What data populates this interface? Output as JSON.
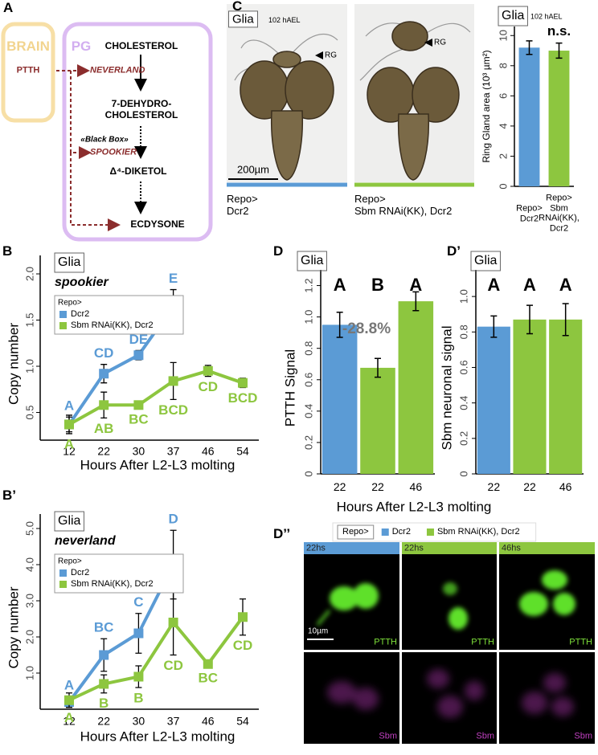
{
  "panel_labels": {
    "a": "A",
    "b": "B",
    "b2": "B’",
    "c": "C",
    "d": "D",
    "d2": "D’",
    "d3": "D’’"
  },
  "pathway": {
    "brain": "BRAIN",
    "ptth": "PTTH",
    "pg": "PG",
    "neverland": "NEVERLAND",
    "cholesterol": "CHOLESTEROL",
    "dehydro": "7-DEHYDRO-\nCHOLESTEROL",
    "black_box": "«Black Box»",
    "spookier": "SPOOKIER",
    "diketol": "Δ⁴-DIKETOL",
    "ecdysone": "ECDYSONE"
  },
  "micrographs": {
    "label": "Glia",
    "stage": "102 hAEL",
    "marker": "RG",
    "scale_bar": "200µm",
    "captions": [
      "Repo>\nDcr2",
      "Repo>\nSbm RNAi(KK), Dcr2"
    ]
  },
  "legend": {
    "title": "Repo>",
    "items": [
      {
        "name": "Dcr2",
        "color": "#5b9bd5"
      },
      {
        "name": "Sbm RNAi(KK), Dcr2",
        "color": "#8dc63f"
      }
    ]
  },
  "confocal": {
    "timepoints": [
      "22hs",
      "22hs",
      "46hs"
    ],
    "scale_bar": "10µm",
    "channels": [
      "PTTH",
      "Sbm"
    ]
  },
  "chart_data": [
    {
      "type": "bar",
      "title": "Glia",
      "subtitle": "102 hAEL",
      "ylabel": "Ring Gland area (10³ µm²)",
      "categories": [
        "Repo>\nDcr2",
        "Repo>\nSbm RNAi(KK), Dcr2"
      ],
      "values": [
        9.2,
        9.0
      ],
      "errors": [
        0.45,
        0.5
      ],
      "colors": [
        "#5b9bd5",
        "#8dc63f"
      ],
      "annotation": "n.s.",
      "ylim": [
        0,
        10.6
      ],
      "yticks": [
        0,
        2,
        4,
        6,
        8,
        10
      ]
    },
    {
      "type": "line",
      "title": "Glia",
      "subtitle": "spookier",
      "xlabel": "Hours After L2-L3 molting",
      "ylabel": "Copy number",
      "legend_title": "Repo>",
      "categories": [
        "12",
        "22",
        "30",
        "37",
        "46",
        "54"
      ],
      "series": [
        {
          "name": "Dcr2",
          "color": "#5b9bd5",
          "values": [
            0.37,
            0.92,
            1.12,
            1.65,
            null,
            null
          ],
          "errors": [
            0.08,
            0.1,
            0.05,
            0.18,
            null,
            null
          ],
          "letters": [
            "A",
            "CD",
            "DE",
            "E",
            null,
            null
          ]
        },
        {
          "name": "Sbm RNAi(KK), Dcr2",
          "color": "#8dc63f",
          "values": [
            0.37,
            0.58,
            0.58,
            0.84,
            0.95,
            0.82
          ],
          "errors": [
            0.1,
            0.14,
            0.04,
            0.2,
            0.06,
            0.05
          ],
          "letters": [
            "A",
            "AB",
            "BC",
            "BCD",
            "CD",
            "BCD"
          ]
        }
      ],
      "ylim": [
        0.2,
        2.2
      ],
      "yticks": [
        0.5,
        {
          "value": 1,
          "label": "1.0"
        },
        1.5,
        {
          "value": 2,
          "label": "2.0"
        }
      ]
    },
    {
      "type": "line",
      "title": "Glia",
      "subtitle": "neverland",
      "xlabel": "Hours After L2-L3 molting",
      "ylabel": "Copy number",
      "legend_title": "Repo>",
      "categories": [
        "12",
        "22",
        "30",
        "37",
        "46",
        "54"
      ],
      "series": [
        {
          "name": "Dcr2",
          "color": "#5b9bd5",
          "values": [
            0.2,
            1.5,
            2.1,
            4.0,
            null,
            null
          ],
          "errors": [
            0.15,
            0.45,
            0.55,
            0.95,
            null,
            null
          ],
          "letters": [
            "A",
            "BC",
            "C",
            "D",
            null,
            null
          ]
        },
        {
          "name": "Sbm RNAi(KK), Dcr2",
          "color": "#8dc63f",
          "values": [
            0.25,
            0.7,
            0.9,
            2.4,
            1.25,
            2.55
          ],
          "errors": [
            0.2,
            0.25,
            0.3,
            0.9,
            0.1,
            0.5
          ],
          "letters": [
            "A",
            "B",
            "B",
            "CD",
            "BC",
            "CD"
          ]
        }
      ],
      "ylim": [
        0,
        5.4
      ],
      "yticks": [
        {
          "value": 1,
          "label": "1.0"
        },
        {
          "value": 2,
          "label": "2.0"
        },
        {
          "value": 3,
          "label": "3.0"
        },
        {
          "value": 4,
          "label": "4.0"
        },
        {
          "value": 5,
          "label": "5.0"
        }
      ]
    },
    {
      "type": "bar",
      "title": "Glia",
      "xlabel": "Hours After L2-L3 molting",
      "ylabel": "PTTH Signal",
      "categories": [
        "22",
        "22",
        "46"
      ],
      "values": [
        0.95,
        0.676,
        1.1
      ],
      "errors": [
        0.08,
        0.06,
        0.06
      ],
      "colors": [
        "#5b9bd5",
        "#8dc63f",
        "#8dc63f"
      ],
      "letters": [
        "A",
        "B",
        "A"
      ],
      "annotation": "-28.8%",
      "ylim": [
        0,
        1.3
      ],
      "yticks": [
        0,
        0.2,
        0.4,
        0.6,
        0.8,
        {
          "value": 1,
          "label": "1.0"
        },
        1.2
      ]
    },
    {
      "type": "bar",
      "title": "Glia",
      "ylabel": "Sbm neuronal signal",
      "categories": [
        "22",
        "22",
        "46"
      ],
      "values": [
        0.83,
        0.87,
        0.87
      ],
      "errors": [
        0.06,
        0.08,
        0.09
      ],
      "colors": [
        "#5b9bd5",
        "#8dc63f",
        "#8dc63f"
      ],
      "letters": [
        "A",
        "A",
        "A"
      ],
      "ylim": [
        0,
        1.15
      ],
      "yticks": [
        0,
        0.2,
        0.4,
        0.6,
        0.8,
        {
          "value": 1,
          "label": "1.0"
        }
      ]
    }
  ]
}
